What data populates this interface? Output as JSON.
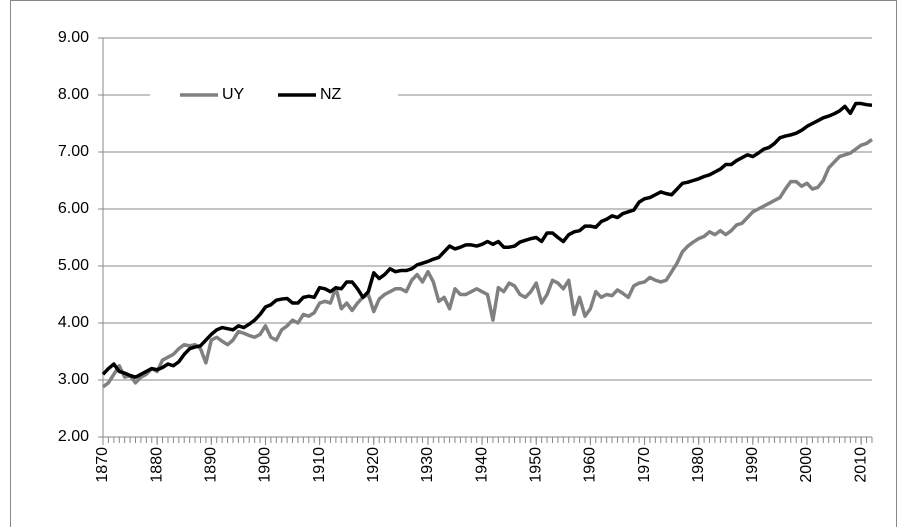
{
  "chart_data": {
    "type": "line",
    "x": [
      1870,
      1871,
      1872,
      1873,
      1874,
      1875,
      1876,
      1877,
      1878,
      1879,
      1880,
      1881,
      1882,
      1883,
      1884,
      1885,
      1886,
      1887,
      1888,
      1889,
      1890,
      1891,
      1892,
      1893,
      1894,
      1895,
      1896,
      1897,
      1898,
      1899,
      1900,
      1901,
      1902,
      1903,
      1904,
      1905,
      1906,
      1907,
      1908,
      1909,
      1910,
      1911,
      1912,
      1913,
      1914,
      1915,
      1916,
      1917,
      1918,
      1919,
      1920,
      1921,
      1922,
      1923,
      1924,
      1925,
      1926,
      1927,
      1928,
      1929,
      1930,
      1931,
      1932,
      1933,
      1934,
      1935,
      1936,
      1937,
      1938,
      1939,
      1940,
      1941,
      1942,
      1943,
      1944,
      1945,
      1946,
      1947,
      1948,
      1949,
      1950,
      1951,
      1952,
      1953,
      1954,
      1955,
      1956,
      1957,
      1958,
      1959,
      1960,
      1961,
      1962,
      1963,
      1964,
      1965,
      1966,
      1967,
      1968,
      1969,
      1970,
      1971,
      1972,
      1973,
      1974,
      1975,
      1976,
      1977,
      1978,
      1979,
      1980,
      1981,
      1982,
      1983,
      1984,
      1985,
      1986,
      1987,
      1988,
      1989,
      1990,
      1991,
      1992,
      1993,
      1994,
      1995,
      1996,
      1997,
      1998,
      1999,
      2000,
      2001,
      2002,
      2003,
      2004,
      2005,
      2006,
      2007,
      2008,
      2009,
      2010,
      2011,
      2012
    ],
    "series": [
      {
        "name": "UY",
        "color": "#808080",
        "values": [
          2.88,
          2.95,
          3.1,
          3.25,
          3.05,
          3.08,
          2.95,
          3.05,
          3.1,
          3.2,
          3.15,
          3.35,
          3.4,
          3.45,
          3.55,
          3.62,
          3.6,
          3.62,
          3.55,
          3.3,
          3.7,
          3.75,
          3.68,
          3.62,
          3.7,
          3.85,
          3.82,
          3.78,
          3.75,
          3.8,
          3.95,
          3.75,
          3.7,
          3.88,
          3.95,
          4.05,
          4.0,
          4.15,
          4.12,
          4.18,
          4.35,
          4.38,
          4.35,
          4.62,
          4.25,
          4.35,
          4.22,
          4.35,
          4.45,
          4.5,
          4.2,
          4.42,
          4.5,
          4.55,
          4.6,
          4.6,
          4.55,
          4.75,
          4.85,
          4.72,
          4.9,
          4.72,
          4.38,
          4.45,
          4.25,
          4.6,
          4.5,
          4.5,
          4.55,
          4.6,
          4.55,
          4.5,
          4.05,
          4.62,
          4.55,
          4.7,
          4.65,
          4.5,
          4.45,
          4.55,
          4.7,
          4.35,
          4.5,
          4.75,
          4.7,
          4.6,
          4.75,
          4.15,
          4.45,
          4.12,
          4.25,
          4.55,
          4.45,
          4.5,
          4.48,
          4.58,
          4.52,
          4.45,
          4.65,
          4.7,
          4.72,
          4.8,
          4.75,
          4.72,
          4.75,
          4.9,
          5.05,
          5.25,
          5.35,
          5.42,
          5.48,
          5.52,
          5.6,
          5.55,
          5.62,
          5.55,
          5.62,
          5.72,
          5.75,
          5.85,
          5.95,
          6.0,
          6.05,
          6.1,
          6.15,
          6.2,
          6.35,
          6.48,
          6.48,
          6.4,
          6.45,
          6.35,
          6.38,
          6.5,
          6.72,
          6.82,
          6.92,
          6.95,
          6.98,
          7.05,
          7.12,
          7.15,
          7.22
        ]
      },
      {
        "name": "NZ",
        "color": "#000000",
        "values": [
          3.1,
          3.2,
          3.28,
          3.15,
          3.12,
          3.08,
          3.05,
          3.1,
          3.15,
          3.2,
          3.18,
          3.22,
          3.28,
          3.25,
          3.32,
          3.45,
          3.55,
          3.58,
          3.6,
          3.7,
          3.8,
          3.88,
          3.92,
          3.9,
          3.88,
          3.95,
          3.92,
          3.98,
          4.05,
          4.15,
          4.28,
          4.32,
          4.4,
          4.42,
          4.43,
          4.35,
          4.35,
          4.45,
          4.47,
          4.45,
          4.62,
          4.6,
          4.55,
          4.62,
          4.6,
          4.72,
          4.72,
          4.6,
          4.45,
          4.55,
          4.88,
          4.78,
          4.85,
          4.95,
          4.9,
          4.92,
          4.92,
          4.95,
          5.02,
          5.05,
          5.08,
          5.12,
          5.15,
          5.25,
          5.35,
          5.3,
          5.33,
          5.37,
          5.37,
          5.35,
          5.38,
          5.43,
          5.38,
          5.43,
          5.33,
          5.33,
          5.35,
          5.42,
          5.45,
          5.48,
          5.5,
          5.43,
          5.58,
          5.58,
          5.5,
          5.43,
          5.55,
          5.6,
          5.62,
          5.7,
          5.7,
          5.68,
          5.78,
          5.82,
          5.88,
          5.85,
          5.92,
          5.95,
          5.98,
          6.12,
          6.18,
          6.2,
          6.25,
          6.3,
          6.27,
          6.25,
          6.35,
          6.45,
          6.47,
          6.5,
          6.53,
          6.57,
          6.6,
          6.65,
          6.7,
          6.78,
          6.78,
          6.85,
          6.9,
          6.95,
          6.92,
          6.98,
          7.05,
          7.08,
          7.15,
          7.25,
          7.28,
          7.3,
          7.33,
          7.38,
          7.45,
          7.5,
          7.55,
          7.6,
          7.63,
          7.67,
          7.72,
          7.8,
          7.68,
          7.85,
          7.85,
          7.83,
          7.82
        ]
      }
    ],
    "xlim": [
      1870,
      2012
    ],
    "xticks": [
      1870,
      1880,
      1890,
      1900,
      1910,
      1920,
      1930,
      1940,
      1950,
      1960,
      1970,
      1980,
      1990,
      2000,
      2010
    ],
    "ylim": [
      2,
      9
    ],
    "yticks": [
      {
        "value": 2,
        "label": "2.00"
      },
      {
        "value": 3,
        "label": "3.00"
      },
      {
        "value": 4,
        "label": "4.00"
      },
      {
        "value": 5,
        "label": "5.00"
      },
      {
        "value": 6,
        "label": "6.00"
      },
      {
        "value": 7,
        "label": "7.00"
      },
      {
        "value": 8,
        "label": "8.00"
      },
      {
        "value": 9,
        "label": "9.00"
      }
    ],
    "grid": true,
    "legend": "top-left"
  }
}
